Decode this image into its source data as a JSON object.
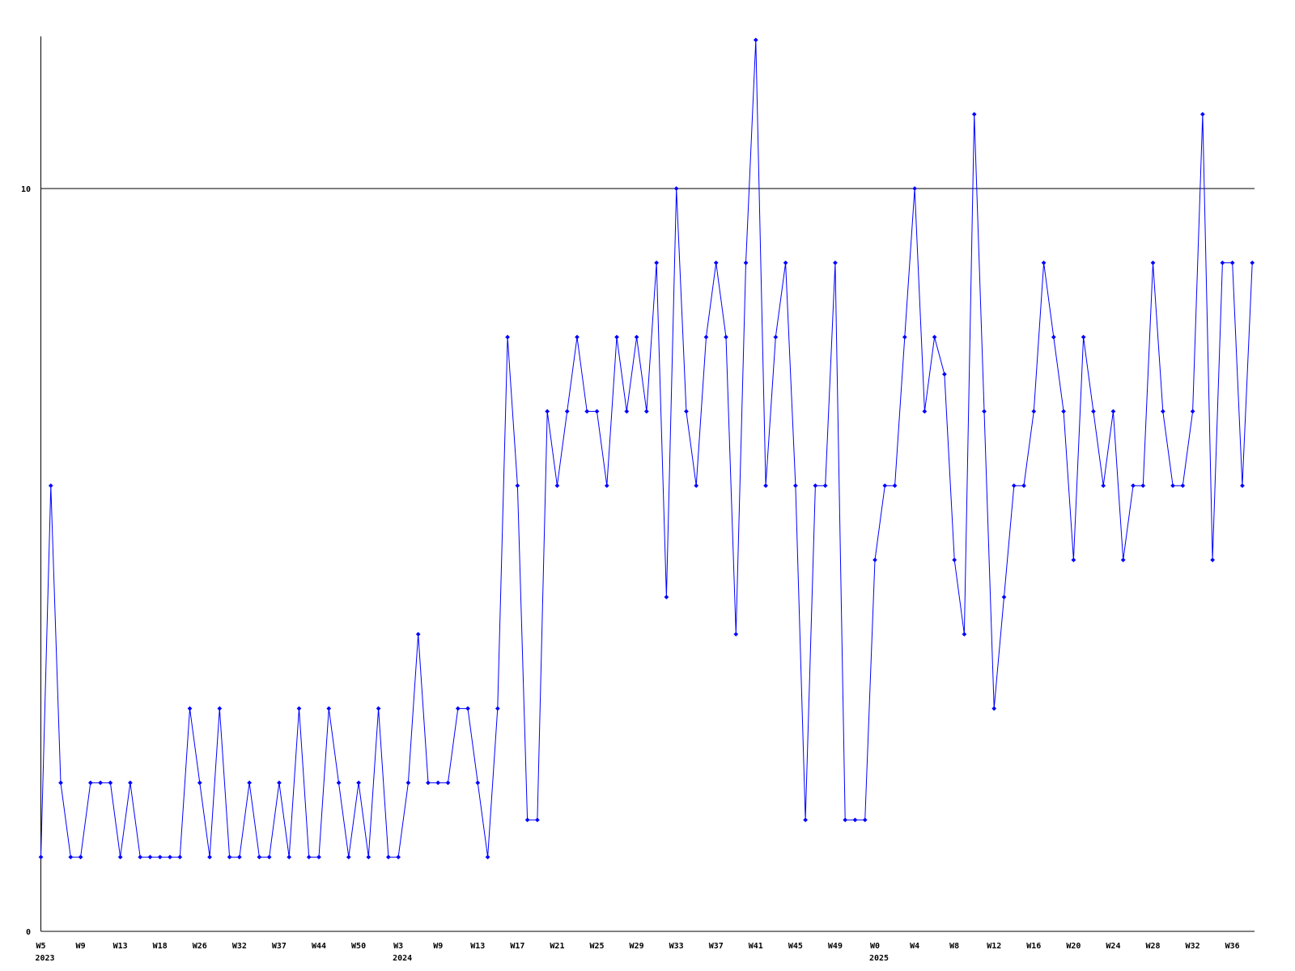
{
  "chart_data": {
    "type": "line",
    "title": "",
    "xlabel": "",
    "ylabel": "",
    "background_color": "#ffffff",
    "line_color": "#0000ff",
    "axis_color": "#000000",
    "grid_on": true,
    "gridline_value": 10,
    "ylim": [
      0,
      12.2
    ],
    "ytick_values": [
      0,
      10
    ],
    "ytick_labels": [
      "0",
      "10"
    ],
    "x_tick_interval_samples": 4,
    "x_tick_week_labels": [
      "W5",
      "W9",
      "W13",
      "W18",
      "W26",
      "W32",
      "W37",
      "W44",
      "W50",
      "W3",
      "W9",
      "W13",
      "W17",
      "W21",
      "W25",
      "W29",
      "W33",
      "W37",
      "W41",
      "W45",
      "W49",
      "W0",
      "W4",
      "W8",
      "W12",
      "W16",
      "W20",
      "W24",
      "W28",
      "W32",
      "W36"
    ],
    "year_labels": [
      {
        "tick_index": 0,
        "text": "2023"
      },
      {
        "tick_index": 9,
        "text": "2024"
      },
      {
        "tick_index": 21,
        "text": "2025"
      }
    ],
    "legend": null,
    "values": [
      1,
      6,
      2,
      1,
      1,
      2,
      2,
      2,
      1,
      2,
      1,
      1,
      1,
      1,
      1,
      3,
      2,
      1,
      3,
      1,
      1,
      2,
      1,
      1,
      2,
      1,
      3,
      1,
      1,
      3,
      2,
      1,
      2,
      1,
      3,
      1,
      1,
      2,
      4,
      2,
      2,
      2,
      3,
      3,
      2,
      1,
      3,
      8,
      6,
      1.5,
      1.5,
      7,
      6,
      7,
      8,
      7,
      7,
      6,
      8,
      7,
      8,
      7,
      9,
      4.5,
      10,
      7,
      6,
      8,
      9,
      8,
      4,
      9,
      12,
      6,
      8,
      9,
      6,
      1.5,
      6,
      6,
      9,
      1.5,
      1.5,
      1.5,
      5,
      6,
      6,
      8,
      10,
      7,
      8,
      7.5,
      5,
      4,
      11,
      7,
      3,
      4.5,
      6,
      6,
      7,
      9,
      8,
      7,
      5,
      8,
      7,
      6,
      7,
      5,
      6,
      6,
      9,
      7,
      6,
      6,
      7,
      11,
      5,
      9,
      9,
      6,
      9
    ]
  }
}
